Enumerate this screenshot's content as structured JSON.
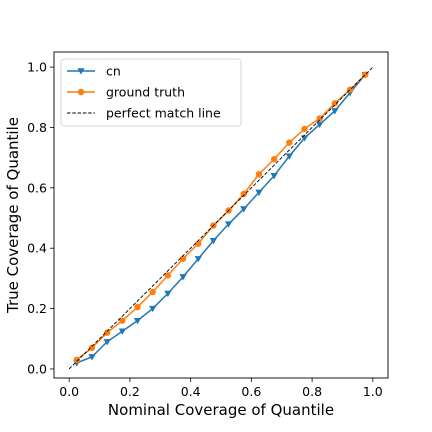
{
  "chart_data": {
    "type": "line",
    "title": "",
    "xlabel": "Nominal Coverage of Quantile",
    "ylabel": "True Coverage of Quantile",
    "xlim": [
      -0.05,
      1.05
    ],
    "ylim": [
      -0.03,
      1.05
    ],
    "xticks": [
      0.0,
      0.2,
      0.4,
      0.6,
      0.8,
      1.0
    ],
    "xtick_labels": [
      "0.0",
      "0.2",
      "0.4",
      "0.6",
      "0.8",
      "1.0"
    ],
    "yticks": [
      0.0,
      0.2,
      0.4,
      0.6,
      0.8,
      1.0
    ],
    "ytick_labels": [
      "0.0",
      "0.2",
      "0.4",
      "0.6",
      "0.8",
      "1.0"
    ],
    "grid": false,
    "legend_position": "top-left",
    "series": [
      {
        "name": "cn",
        "color": "#1f77b4",
        "marker": "triangle-down",
        "x": [
          0.025,
          0.075,
          0.125,
          0.175,
          0.225,
          0.275,
          0.325,
          0.375,
          0.425,
          0.475,
          0.525,
          0.575,
          0.625,
          0.675,
          0.725,
          0.775,
          0.825,
          0.875,
          0.925,
          0.975
        ],
        "y": [
          0.02,
          0.04,
          0.09,
          0.125,
          0.16,
          0.2,
          0.25,
          0.305,
          0.365,
          0.425,
          0.48,
          0.53,
          0.585,
          0.64,
          0.705,
          0.765,
          0.81,
          0.855,
          0.915,
          0.975
        ]
      },
      {
        "name": "ground truth",
        "color": "#ff7f0e",
        "marker": "circle",
        "x": [
          0.025,
          0.075,
          0.125,
          0.175,
          0.225,
          0.275,
          0.325,
          0.375,
          0.425,
          0.475,
          0.525,
          0.575,
          0.625,
          0.675,
          0.725,
          0.775,
          0.825,
          0.875,
          0.925,
          0.975
        ],
        "y": [
          0.03,
          0.07,
          0.12,
          0.16,
          0.205,
          0.255,
          0.31,
          0.365,
          0.415,
          0.475,
          0.525,
          0.58,
          0.645,
          0.695,
          0.75,
          0.795,
          0.83,
          0.88,
          0.925,
          0.975
        ]
      },
      {
        "name": "perfect match line",
        "color": "#000000",
        "style": "dashed",
        "x": [
          0.0,
          1.0
        ],
        "y": [
          0.0,
          1.0
        ]
      }
    ]
  }
}
